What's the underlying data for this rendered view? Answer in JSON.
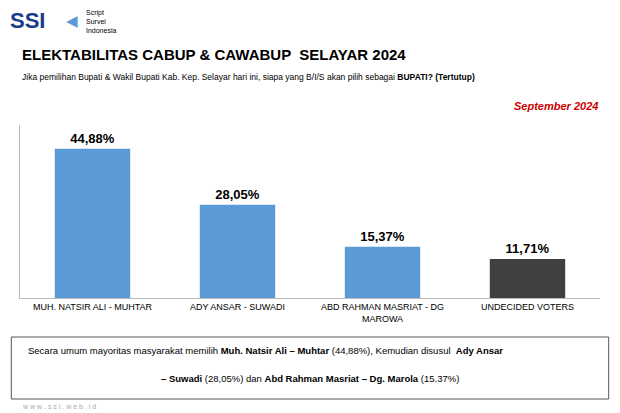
{
  "chart_data": {
    "type": "bar",
    "title": "ELEKTABILITAS CABUP & CAWABUP  SELAYAR 2024",
    "subtitle_parts": [
      [
        "Jika pemilihan Bupati & Wakil Bupati Kab. Kep. Selayar hari ini, siapa yang B/I/S akan pilih sebagai ",
        false
      ],
      [
        "BUPATI?",
        true
      ],
      [
        " (Tertutup)",
        true
      ]
    ],
    "annotations": [
      "September 2024"
    ],
    "logo": [
      "SSI",
      "◀",
      "Script",
      "Survei",
      "Indonesia"
    ],
    "watermark": "w w w . s s i . w e b . i d",
    "categories": [
      "MUH. NATSIR ALI - MUHTAR",
      "ADY ANSAR - SUWADI",
      "ABD RAHMAN MASRIAT - DG\nMAROWA",
      "UNDECIDED VOTERS"
    ],
    "values": [
      44.88,
      28.05,
      15.37,
      11.71
    ],
    "value_labels": [
      "44,88%",
      "28,05%",
      "15,37%",
      "11,71%"
    ],
    "data_labels": true,
    "colors": [
      "#5B9BD5",
      "#5B9BD5",
      "#5B9BD5",
      "#404040"
    ],
    "ylim": [
      0,
      52
    ],
    "tick_labels": "x",
    "grid": false,
    "footer_lines": [
      [
        [
          "Secara umum mayoritas masyarakat memilih ",
          false
        ],
        [
          "Muh. Natsir Ali – Muhtar",
          true
        ],
        [
          " (44,88%), Kemudian disusul  ",
          false
        ],
        [
          "Ady Ansar",
          true
        ]
      ],
      [
        [
          "– Suwadi",
          true
        ],
        [
          " (28,05%) dan ",
          false
        ],
        [
          "Abd Rahman Masriat – Dg. Marola",
          true
        ],
        [
          " (15.37%)",
          false
        ]
      ]
    ]
  }
}
